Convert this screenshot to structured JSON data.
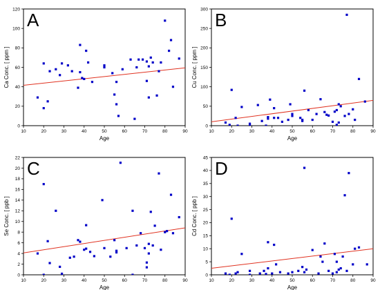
{
  "colors": {
    "points": "#0000c8",
    "fit": "#e0301e",
    "frame": "#000000"
  },
  "chart_data": [
    {
      "type": "scatter",
      "panel": "A",
      "xlabel": "Age",
      "ylabel": "Ca Conc. [ ppm ]",
      "xlim": [
        10,
        90
      ],
      "ylim": [
        0,
        120
      ],
      "xticks": [
        "10",
        "20",
        "30",
        "40",
        "50",
        "60",
        "70",
        "80",
        "90"
      ],
      "yticks": [
        "0",
        "20",
        "40",
        "60",
        "80",
        "100",
        "120"
      ],
      "fit": {
        "x": [
          10,
          90
        ],
        "y": [
          41.5,
          59.5
        ]
      },
      "x": [
        17,
        20,
        20,
        22,
        23,
        26,
        28,
        29,
        32,
        34,
        37,
        38,
        38,
        39,
        40,
        41,
        42,
        44,
        50,
        50,
        54,
        55,
        56,
        56,
        57,
        59,
        63,
        65,
        66,
        67,
        69,
        71,
        71,
        72,
        72,
        73,
        74,
        76,
        77,
        78,
        80,
        82,
        83,
        84,
        87
      ],
      "y": [
        29,
        18,
        64,
        25,
        56,
        58,
        52,
        64,
        62,
        56,
        39,
        55,
        83,
        49,
        48,
        77,
        65,
        45,
        60,
        62,
        54,
        32,
        22,
        45,
        10,
        58,
        68,
        7,
        60,
        68,
        68,
        66,
        46,
        29,
        61,
        70,
        65,
        31,
        56,
        65,
        108,
        77,
        88,
        40,
        69
      ]
    },
    {
      "type": "scatter",
      "panel": "B",
      "xlabel": "Age",
      "ylabel": "Cu Conc. [ ppm ]",
      "xlim": [
        10,
        90
      ],
      "ylim": [
        0,
        300
      ],
      "xticks": [
        "10",
        "20",
        "30",
        "40",
        "50",
        "60",
        "70",
        "80",
        "90"
      ],
      "yticks": [
        "0",
        "50",
        "100",
        "150",
        "200",
        "250",
        "300"
      ],
      "fit": {
        "x": [
          10,
          90
        ],
        "y": [
          10,
          65
        ]
      },
      "x": [
        17,
        19,
        20,
        22,
        23,
        25,
        29,
        29,
        33,
        35,
        37,
        38,
        38,
        39,
        41,
        41,
        43,
        45,
        48,
        49,
        50,
        50,
        54,
        55,
        55,
        56,
        58,
        60,
        62,
        64,
        66,
        67,
        68,
        70,
        71,
        72,
        72,
        73,
        73,
        74,
        76,
        77,
        78,
        80,
        81,
        83,
        86
      ],
      "y": [
        8,
        2,
        92,
        20,
        0,
        48,
        5,
        0,
        53,
        12,
        0,
        18,
        22,
        67,
        20,
        45,
        20,
        10,
        15,
        55,
        25,
        30,
        20,
        15,
        12,
        90,
        40,
        15,
        30,
        68,
        35,
        28,
        26,
        10,
        36,
        40,
        2,
        55,
        8,
        50,
        25,
        285,
        30,
        42,
        15,
        120,
        62
      ]
    },
    {
      "type": "scatter",
      "panel": "C",
      "xlabel": "Age",
      "ylabel": "Se Conc. [ ppb ]",
      "xlim": [
        10,
        90
      ],
      "ylim": [
        0,
        22
      ],
      "xticks": [
        "10",
        "20",
        "30",
        "40",
        "50",
        "60",
        "70",
        "80",
        "90"
      ],
      "yticks": [
        "0",
        "2",
        "4",
        "6",
        "8",
        "10",
        "12",
        "14",
        "16",
        "18",
        "20",
        "22"
      ],
      "fit": {
        "x": [
          10,
          90
        ],
        "y": [
          4.1,
          8.8
        ]
      },
      "x": [
        17,
        20,
        20,
        22,
        23,
        26,
        28,
        29,
        33,
        35,
        37,
        38,
        40,
        41,
        41,
        43,
        45,
        49,
        50,
        53,
        55,
        56,
        56,
        58,
        61,
        64,
        64,
        66,
        68,
        70,
        71,
        71,
        72,
        72,
        73,
        74,
        75,
        77,
        78,
        80,
        81,
        83,
        84,
        87
      ],
      "y": [
        4,
        17,
        0,
        6.3,
        2.2,
        12,
        1.5,
        0.2,
        3.2,
        3.4,
        6.5,
        6.2,
        4.7,
        9.3,
        4.9,
        4.3,
        3.5,
        14,
        5,
        3.4,
        6.5,
        4.2,
        4.5,
        21,
        5,
        0,
        12,
        5.5,
        7.8,
        5,
        2.3,
        1.4,
        5.8,
        4,
        11.8,
        5.5,
        9.2,
        19,
        4.7,
        8,
        8.2,
        15,
        7.8,
        10.8
      ]
    },
    {
      "type": "scatter",
      "panel": "D",
      "xlabel": "Age",
      "ylabel": "Cd Conc. [ ppb ]",
      "xlim": [
        10,
        90
      ],
      "ylim": [
        0,
        45
      ],
      "xticks": [
        "10",
        "20",
        "30",
        "40",
        "50",
        "60",
        "70",
        "80",
        "90"
      ],
      "yticks": [
        "0",
        "5",
        "10",
        "15",
        "20",
        "25",
        "30",
        "35",
        "40",
        "45"
      ],
      "fit": {
        "x": [
          10,
          90
        ],
        "y": [
          2.5,
          10
        ]
      },
      "x": [
        17,
        19,
        20,
        22,
        23,
        25,
        29,
        29,
        34,
        36,
        37,
        38,
        38,
        40,
        41,
        42,
        44,
        48,
        50,
        53,
        55,
        56,
        56,
        57,
        60,
        63,
        64,
        65,
        66,
        68,
        70,
        71,
        72,
        72,
        73,
        74,
        75,
        76,
        77,
        78,
        80,
        81,
        83,
        87
      ],
      "y": [
        0.5,
        0,
        21.5,
        0.5,
        1,
        8,
        0,
        1.5,
        0.5,
        1.5,
        0.3,
        2.5,
        12.5,
        0.5,
        11.5,
        4,
        1,
        0.5,
        1,
        1.5,
        3,
        41,
        1,
        2,
        9.5,
        0.5,
        7,
        5,
        12,
        1.5,
        0.5,
        8,
        5,
        1,
        2,
        2.5,
        7,
        30.5,
        1.5,
        39,
        4,
        10,
        10.5,
        4
      ]
    }
  ]
}
